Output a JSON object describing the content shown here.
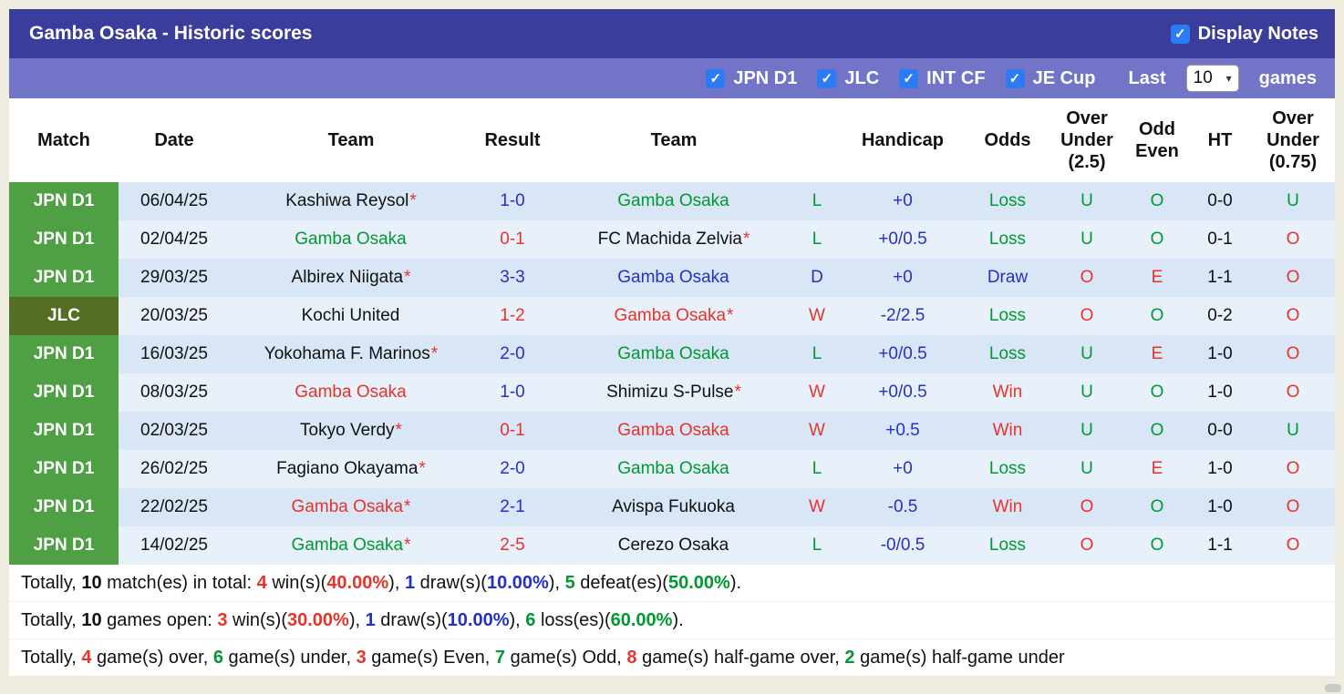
{
  "colors": {
    "title_bar": "#3a3d99",
    "filter_bar": "#7174c7",
    "checkbox_blue": "#2d7bf4",
    "badge_green": "#4f9f45",
    "badge_olive": "#546f24",
    "row_stripe_dark": "#d8e6f6",
    "row_stripe_light": "#e8f0fa",
    "win_red": "#e5342b",
    "loss_green": "#009933",
    "draw_blue": "#2430c7"
  },
  "icons": {
    "checkmark": "✓",
    "chevron_down": "▾"
  },
  "header": {
    "title": "Gamba Osaka - Historic scores",
    "display_notes_label": "Display Notes",
    "display_notes_checked": true
  },
  "filters": {
    "leagues": [
      {
        "label": "JPN D1",
        "checked": true
      },
      {
        "label": "JLC",
        "checked": true
      },
      {
        "label": "INT CF",
        "checked": true
      },
      {
        "label": "JE Cup",
        "checked": true
      }
    ],
    "last_label": "Last",
    "games_count": "10",
    "games_label": "games"
  },
  "table": {
    "headers": [
      "Match",
      "Date",
      "Team",
      "Result",
      "Team",
      "",
      "Handicap",
      "Odds",
      "Over Under (2.5)",
      "Odd Even",
      "HT",
      "Over Under (0.75)"
    ],
    "rows": [
      {
        "comp": "JPN D1",
        "comp_c": "green",
        "date": "06/04/25",
        "home": "Kashiwa Reysol",
        "home_star": "*",
        "home_c": "black",
        "score": "1-0",
        "score_c": "blue",
        "away": "Gamba Osaka",
        "away_star": "",
        "away_c": "green",
        "wdl": "L",
        "wdl_c": "green",
        "handicap": "+0",
        "odds": "Loss",
        "odds_c": "green",
        "ou25": "U",
        "ou25_c": "green",
        "oe": "O",
        "oe_c": "green",
        "ht": "0-0",
        "ou075": "U",
        "ou075_c": "green"
      },
      {
        "comp": "JPN D1",
        "comp_c": "green",
        "date": "02/04/25",
        "home": "Gamba Osaka",
        "home_star": "",
        "home_c": "green",
        "score": "0-1",
        "score_c": "red",
        "away": "FC Machida Zelvia",
        "away_star": "*",
        "away_c": "black",
        "wdl": "L",
        "wdl_c": "green",
        "handicap": "+0/0.5",
        "odds": "Loss",
        "odds_c": "green",
        "ou25": "U",
        "ou25_c": "green",
        "oe": "O",
        "oe_c": "green",
        "ht": "0-1",
        "ou075": "O",
        "ou075_c": "red"
      },
      {
        "comp": "JPN D1",
        "comp_c": "green",
        "date": "29/03/25",
        "home": "Albirex Niigata",
        "home_star": "*",
        "home_c": "black",
        "score": "3-3",
        "score_c": "blue",
        "away": "Gamba Osaka",
        "away_star": "",
        "away_c": "blue",
        "wdl": "D",
        "wdl_c": "blue",
        "handicap": "+0",
        "odds": "Draw",
        "odds_c": "blue",
        "ou25": "O",
        "ou25_c": "red",
        "oe": "E",
        "oe_c": "red",
        "ht": "1-1",
        "ou075": "O",
        "ou075_c": "red"
      },
      {
        "comp": "JLC",
        "comp_c": "olive",
        "date": "20/03/25",
        "home": "Kochi United",
        "home_star": "",
        "home_c": "black",
        "score": "1-2",
        "score_c": "red",
        "away": "Gamba Osaka",
        "away_star": "*",
        "away_c": "red",
        "wdl": "W",
        "wdl_c": "red",
        "handicap": "-2/2.5",
        "odds": "Loss",
        "odds_c": "green",
        "ou25": "O",
        "ou25_c": "red",
        "oe": "O",
        "oe_c": "green",
        "ht": "0-2",
        "ou075": "O",
        "ou075_c": "red"
      },
      {
        "comp": "JPN D1",
        "comp_c": "green",
        "date": "16/03/25",
        "home": "Yokohama F. Marinos",
        "home_star": "*",
        "home_c": "black",
        "score": "2-0",
        "score_c": "blue",
        "away": "Gamba Osaka",
        "away_star": "",
        "away_c": "green",
        "wdl": "L",
        "wdl_c": "green",
        "handicap": "+0/0.5",
        "odds": "Loss",
        "odds_c": "green",
        "ou25": "U",
        "ou25_c": "green",
        "oe": "E",
        "oe_c": "red",
        "ht": "1-0",
        "ou075": "O",
        "ou075_c": "red"
      },
      {
        "comp": "JPN D1",
        "comp_c": "green",
        "date": "08/03/25",
        "home": "Gamba Osaka",
        "home_star": "",
        "home_c": "red",
        "score": "1-0",
        "score_c": "blue",
        "away": "Shimizu S-Pulse",
        "away_star": "*",
        "away_c": "black",
        "wdl": "W",
        "wdl_c": "red",
        "handicap": "+0/0.5",
        "odds": "Win",
        "odds_c": "red",
        "ou25": "U",
        "ou25_c": "green",
        "oe": "O",
        "oe_c": "green",
        "ht": "1-0",
        "ou075": "O",
        "ou075_c": "red"
      },
      {
        "comp": "JPN D1",
        "comp_c": "green",
        "date": "02/03/25",
        "home": "Tokyo Verdy",
        "home_star": "*",
        "home_c": "black",
        "score": "0-1",
        "score_c": "red",
        "away": "Gamba Osaka",
        "away_star": "",
        "away_c": "red",
        "wdl": "W",
        "wdl_c": "red",
        "handicap": "+0.5",
        "odds": "Win",
        "odds_c": "red",
        "ou25": "U",
        "ou25_c": "green",
        "oe": "O",
        "oe_c": "green",
        "ht": "0-0",
        "ou075": "U",
        "ou075_c": "green"
      },
      {
        "comp": "JPN D1",
        "comp_c": "green",
        "date": "26/02/25",
        "home": "Fagiano Okayama",
        "home_star": "*",
        "home_c": "black",
        "score": "2-0",
        "score_c": "blue",
        "away": "Gamba Osaka",
        "away_star": "",
        "away_c": "green",
        "wdl": "L",
        "wdl_c": "green",
        "handicap": "+0",
        "odds": "Loss",
        "odds_c": "green",
        "ou25": "U",
        "ou25_c": "green",
        "oe": "E",
        "oe_c": "red",
        "ht": "1-0",
        "ou075": "O",
        "ou075_c": "red"
      },
      {
        "comp": "JPN D1",
        "comp_c": "green",
        "date": "22/02/25",
        "home": "Gamba Osaka",
        "home_star": "*",
        "home_c": "red",
        "score": "2-1",
        "score_c": "blue",
        "away": "Avispa Fukuoka",
        "away_star": "",
        "away_c": "black",
        "wdl": "W",
        "wdl_c": "red",
        "handicap": "-0.5",
        "odds": "Win",
        "odds_c": "red",
        "ou25": "O",
        "ou25_c": "red",
        "oe": "O",
        "oe_c": "green",
        "ht": "1-0",
        "ou075": "O",
        "ou075_c": "red"
      },
      {
        "comp": "JPN D1",
        "comp_c": "green",
        "date": "14/02/25",
        "home": "Gamba Osaka",
        "home_star": "*",
        "home_c": "green",
        "score": "2-5",
        "score_c": "red",
        "away": "Cerezo Osaka",
        "away_star": "",
        "away_c": "black",
        "wdl": "L",
        "wdl_c": "green",
        "handicap": "-0/0.5",
        "odds": "Loss",
        "odds_c": "green",
        "ou25": "O",
        "ou25_c": "red",
        "oe": "O",
        "oe_c": "green",
        "ht": "1-1",
        "ou075": "O",
        "ou075_c": "red"
      }
    ]
  },
  "summary": {
    "lines": [
      {
        "segs": [
          {
            "t": "Totally, ",
            "c": "black"
          },
          {
            "t": "10",
            "c": "black-b"
          },
          {
            "t": " match(es) in total: ",
            "c": "black"
          },
          {
            "t": "4",
            "c": "red-b"
          },
          {
            "t": " win(s)(",
            "c": "black"
          },
          {
            "t": "40.00%",
            "c": "red-b"
          },
          {
            "t": "), ",
            "c": "black"
          },
          {
            "t": "1",
            "c": "blue-b"
          },
          {
            "t": " draw(s)(",
            "c": "black"
          },
          {
            "t": "10.00%",
            "c": "blue-b"
          },
          {
            "t": "), ",
            "c": "black"
          },
          {
            "t": "5",
            "c": "green-b"
          },
          {
            "t": " defeat(es)(",
            "c": "black"
          },
          {
            "t": "50.00%",
            "c": "green-b"
          },
          {
            "t": ").",
            "c": "black"
          }
        ]
      },
      {
        "segs": [
          {
            "t": "Totally, ",
            "c": "black"
          },
          {
            "t": "10",
            "c": "black-b"
          },
          {
            "t": " games open: ",
            "c": "black"
          },
          {
            "t": "3",
            "c": "red-b"
          },
          {
            "t": " win(s)(",
            "c": "black"
          },
          {
            "t": "30.00%",
            "c": "red-b"
          },
          {
            "t": "), ",
            "c": "black"
          },
          {
            "t": "1",
            "c": "blue-b"
          },
          {
            "t": " draw(s)(",
            "c": "black"
          },
          {
            "t": "10.00%",
            "c": "blue-b"
          },
          {
            "t": "), ",
            "c": "black"
          },
          {
            "t": "6",
            "c": "green-b"
          },
          {
            "t": " loss(es)(",
            "c": "black"
          },
          {
            "t": "60.00%",
            "c": "green-b"
          },
          {
            "t": ").",
            "c": "black"
          }
        ]
      },
      {
        "segs": [
          {
            "t": "Totally, ",
            "c": "black"
          },
          {
            "t": "4",
            "c": "red-b"
          },
          {
            "t": " game(s) over, ",
            "c": "black"
          },
          {
            "t": "6",
            "c": "green-b"
          },
          {
            "t": " game(s) under, ",
            "c": "black"
          },
          {
            "t": "3",
            "c": "red-b"
          },
          {
            "t": " game(s) Even, ",
            "c": "black"
          },
          {
            "t": "7",
            "c": "green-b"
          },
          {
            "t": " game(s) Odd, ",
            "c": "black"
          },
          {
            "t": "8",
            "c": "red-b"
          },
          {
            "t": " game(s) half-game over, ",
            "c": "black"
          },
          {
            "t": "2",
            "c": "green-b"
          },
          {
            "t": " game(s) half-game under",
            "c": "black"
          }
        ]
      }
    ]
  }
}
